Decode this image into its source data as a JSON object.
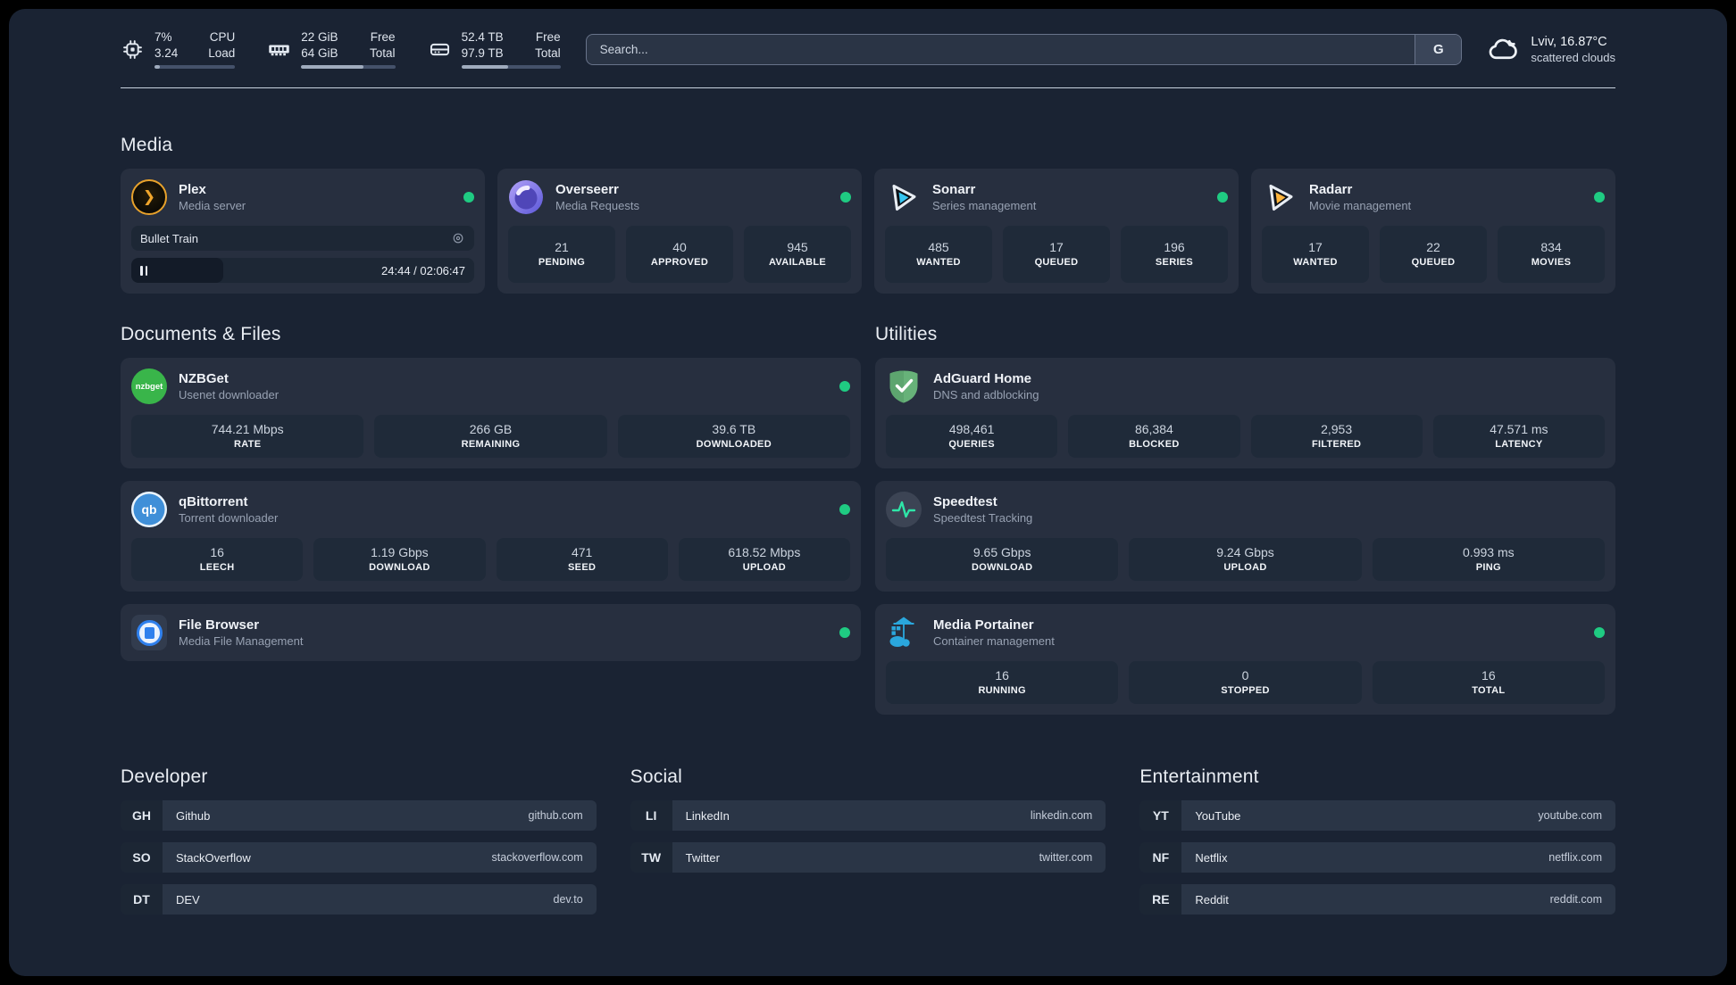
{
  "colors": {
    "accent_dot": "#1fcb82",
    "page_bg": "#1a2333",
    "card_bg": "#272f3f"
  },
  "header": {
    "resources": [
      {
        "icon": "cpu-icon",
        "values": [
          "7%",
          "3.24"
        ],
        "labels": [
          "CPU",
          "Load"
        ],
        "progress_pct": 7
      },
      {
        "icon": "memory-icon",
        "values": [
          "22 GiB",
          "64 GiB"
        ],
        "labels": [
          "Free",
          "Total"
        ],
        "progress_pct": 66
      },
      {
        "icon": "disk-icon",
        "values": [
          "52.4 TB",
          "97.9 TB"
        ],
        "labels": [
          "Free",
          "Total"
        ],
        "progress_pct": 47
      }
    ],
    "search": {
      "placeholder": "Search...",
      "provider_button": "G"
    },
    "weather": {
      "icon": "cloud-icon",
      "title": "Lviv, 16.87°C",
      "subtitle": "scattered clouds"
    }
  },
  "groups": [
    {
      "title": "Media",
      "services": [
        {
          "icon": "plex-icon",
          "name": "Plex",
          "description": "Media server",
          "status": true,
          "player": {
            "track": "Bullet Train",
            "time_display": "24:44 / 02:06:47",
            "progress_pct": 19.5,
            "state": "paused"
          }
        },
        {
          "icon": "overseerr-icon",
          "name": "Overseerr",
          "description": "Media Requests",
          "status": true,
          "stats": [
            {
              "value": "21",
              "label": "PENDING"
            },
            {
              "value": "40",
              "label": "APPROVED"
            },
            {
              "value": "945",
              "label": "AVAILABLE"
            }
          ]
        },
        {
          "icon": "sonarr-icon",
          "name": "Sonarr",
          "description": "Series management",
          "status": true,
          "stats": [
            {
              "value": "485",
              "label": "WANTED"
            },
            {
              "value": "17",
              "label": "QUEUED"
            },
            {
              "value": "196",
              "label": "SERIES"
            }
          ]
        },
        {
          "icon": "radarr-icon",
          "name": "Radarr",
          "description": "Movie management",
          "status": true,
          "stats": [
            {
              "value": "17",
              "label": "WANTED"
            },
            {
              "value": "22",
              "label": "QUEUED"
            },
            {
              "value": "834",
              "label": "MOVIES"
            }
          ]
        }
      ]
    },
    {
      "title": "Documents & Files",
      "services": [
        {
          "icon": "nzbget-icon",
          "name": "NZBGet",
          "description": "Usenet downloader",
          "status": true,
          "stats": [
            {
              "value": "744.21 Mbps",
              "label": "RATE"
            },
            {
              "value": "266 GB",
              "label": "REMAINING"
            },
            {
              "value": "39.6 TB",
              "label": "DOWNLOADED"
            }
          ]
        },
        {
          "icon": "qbittorrent-icon",
          "name": "qBittorrent",
          "description": "Torrent downloader",
          "status": true,
          "stats": [
            {
              "value": "16",
              "label": "LEECH"
            },
            {
              "value": "1.19 Gbps",
              "label": "DOWNLOAD"
            },
            {
              "value": "471",
              "label": "SEED"
            },
            {
              "value": "618.52 Mbps",
              "label": "UPLOAD"
            }
          ]
        },
        {
          "icon": "filebrowser-icon",
          "name": "File Browser",
          "description": "Media File Management",
          "status": true
        }
      ]
    },
    {
      "title": "Utilities",
      "services": [
        {
          "icon": "adguard-icon",
          "name": "AdGuard Home",
          "description": "DNS and adblocking",
          "status": null,
          "stats": [
            {
              "value": "498,461",
              "label": "QUERIES"
            },
            {
              "value": "86,384",
              "label": "BLOCKED"
            },
            {
              "value": "2,953",
              "label": "FILTERED"
            },
            {
              "value": "47.571 ms",
              "label": "LATENCY"
            }
          ]
        },
        {
          "icon": "speedtest-icon",
          "name": "Speedtest",
          "description": "Speedtest Tracking",
          "status": null,
          "stats": [
            {
              "value": "9.65 Gbps",
              "label": "DOWNLOAD"
            },
            {
              "value": "9.24 Gbps",
              "label": "UPLOAD"
            },
            {
              "value": "0.993 ms",
              "label": "PING"
            }
          ]
        },
        {
          "icon": "portainer-icon",
          "name": "Media Portainer",
          "description": "Container management",
          "status": true,
          "stats": [
            {
              "value": "16",
              "label": "RUNNING"
            },
            {
              "value": "0",
              "label": "STOPPED"
            },
            {
              "value": "16",
              "label": "TOTAL"
            }
          ]
        }
      ]
    }
  ],
  "bookmarks": [
    {
      "title": "Developer",
      "links": [
        {
          "abbr": "GH",
          "name": "Github",
          "url": "github.com"
        },
        {
          "abbr": "SO",
          "name": "StackOverflow",
          "url": "stackoverflow.com"
        },
        {
          "abbr": "DT",
          "name": "DEV",
          "url": "dev.to"
        }
      ]
    },
    {
      "title": "Social",
      "links": [
        {
          "abbr": "LI",
          "name": "LinkedIn",
          "url": "linkedin.com"
        },
        {
          "abbr": "TW",
          "name": "Twitter",
          "url": "twitter.com"
        }
      ]
    },
    {
      "title": "Entertainment",
      "links": [
        {
          "abbr": "YT",
          "name": "YouTube",
          "url": "youtube.com"
        },
        {
          "abbr": "NF",
          "name": "Netflix",
          "url": "netflix.com"
        },
        {
          "abbr": "RE",
          "name": "Reddit",
          "url": "reddit.com"
        }
      ]
    }
  ]
}
